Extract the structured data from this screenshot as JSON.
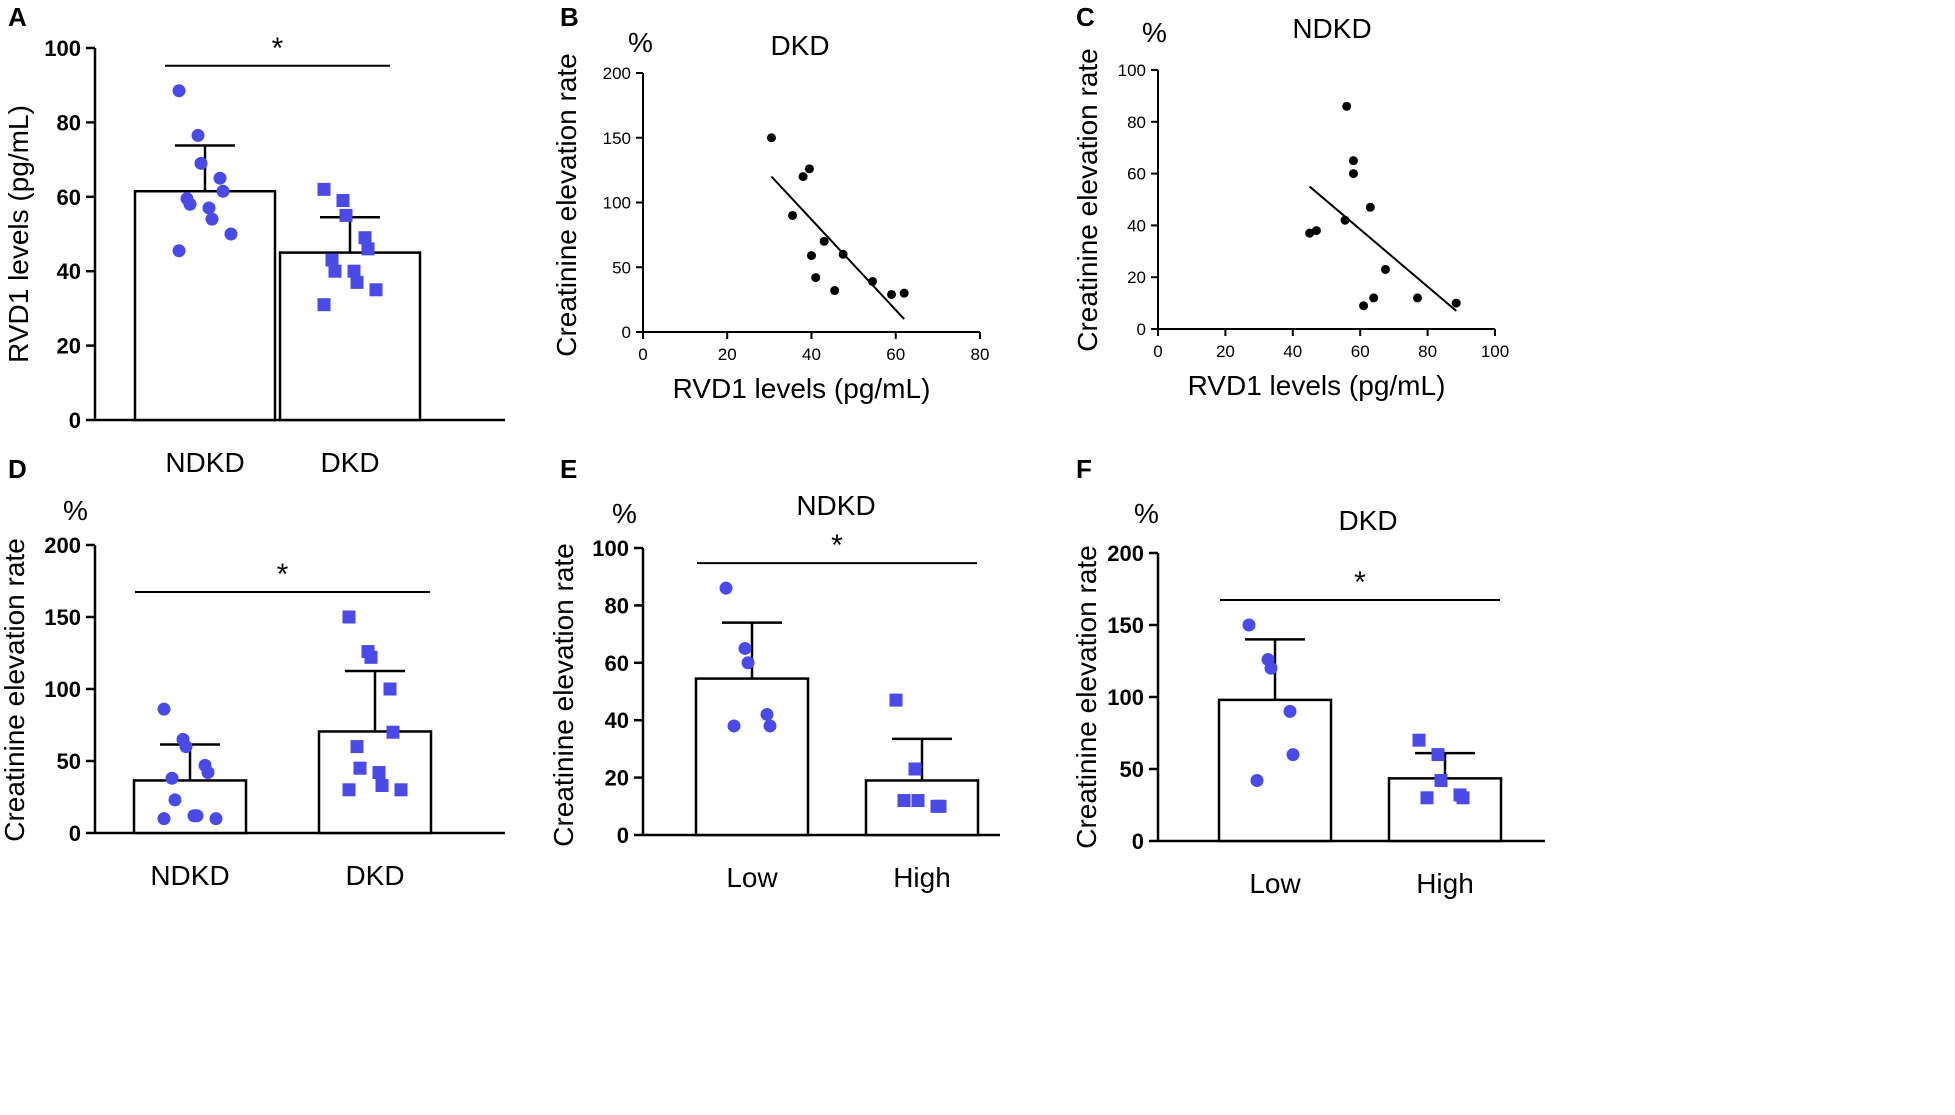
{
  "colors": {
    "marker": "#4a4ae6",
    "axis": "#000000",
    "bar_fill": "#ffffff"
  },
  "chart_data": [
    {
      "panel": "A",
      "type": "bar",
      "title": "",
      "ylabel": "RVD1 levels  (pg/mL)",
      "unit": "",
      "ylim": [
        0,
        100
      ],
      "yticks": [
        0,
        20,
        40,
        60,
        80,
        100
      ],
      "categories": [
        "NDKD",
        "DKD"
      ],
      "means": [
        61.5,
        45
      ],
      "sd": [
        12.3,
        9.5
      ],
      "points": [
        [
          88.5,
          76.5,
          69,
          65,
          61.5,
          59.5,
          58,
          57,
          54,
          50,
          45.5
        ],
        [
          62,
          59,
          55,
          49,
          46,
          43,
          40,
          40,
          37,
          35,
          31
        ]
      ],
      "markers": [
        "circle",
        "square"
      ],
      "significance": {
        "label": "*",
        "between": [
          0,
          1
        ]
      }
    },
    {
      "panel": "B",
      "type": "scatter",
      "title": "DKD",
      "unit": "%",
      "xlabel": "RVD1 levels  (pg/mL)",
      "ylabel": "Creatinine elevation rate",
      "xlim": [
        0,
        80
      ],
      "ylim": [
        0,
        200
      ],
      "xticks": [
        0,
        20,
        40,
        60,
        80
      ],
      "yticks": [
        0,
        50,
        100,
        150,
        200
      ],
      "x": [
        30.5,
        38,
        39.5,
        35.5,
        43,
        40,
        47.5,
        41,
        45.5,
        54.5,
        59,
        62
      ],
      "y": [
        150,
        120,
        126,
        90,
        70,
        59,
        60,
        42,
        32,
        39,
        29,
        30
      ],
      "fit": {
        "from": [
          30.5,
          120
        ],
        "to": [
          62,
          10
        ]
      }
    },
    {
      "panel": "C",
      "type": "scatter",
      "title": "NDKD",
      "unit": "%",
      "xlabel": "RVD1 levels  (pg/mL)",
      "ylabel": "Creatinine elevation rate",
      "xlim": [
        0,
        100
      ],
      "ylim": [
        0,
        100
      ],
      "xticks": [
        0,
        20,
        40,
        60,
        80,
        100
      ],
      "yticks": [
        0,
        20,
        40,
        60,
        80,
        100
      ],
      "x": [
        56,
        58,
        58,
        63,
        45,
        47,
        55.5,
        61,
        67.5,
        64,
        77,
        88.5
      ],
      "y": [
        86,
        65,
        60,
        47,
        37,
        38,
        42,
        9,
        23,
        12,
        12,
        10
      ],
      "fit": {
        "from": [
          45,
          55
        ],
        "to": [
          88.5,
          7
        ]
      }
    },
    {
      "panel": "D",
      "type": "bar",
      "title": "",
      "unit": "%",
      "ylabel": "Creatinine elevation rate",
      "ylim": [
        0,
        200
      ],
      "yticks": [
        0,
        50,
        100,
        150,
        200
      ],
      "categories": [
        "NDKD",
        "DKD"
      ],
      "means": [
        36.5,
        70.5
      ],
      "sd": [
        25,
        42
      ],
      "points": [
        [
          86,
          65,
          60,
          47,
          42,
          38,
          23,
          12,
          12,
          10,
          10
        ],
        [
          150,
          126,
          122,
          100,
          70,
          60,
          45,
          42,
          33,
          30,
          30
        ]
      ],
      "markers": [
        "circle",
        "square"
      ],
      "significance": {
        "label": "*",
        "between": [
          0,
          1
        ]
      }
    },
    {
      "panel": "E",
      "type": "bar",
      "title": "NDKD",
      "unit": "%",
      "ylabel": "Creatinine elevation rate",
      "ylim": [
        0,
        100
      ],
      "yticks": [
        0,
        20,
        40,
        60,
        80,
        100
      ],
      "categories": [
        "Low",
        "High"
      ],
      "means": [
        54.5,
        19
      ],
      "sd": [
        19.5,
        14.5
      ],
      "points": [
        [
          86,
          65,
          60,
          42,
          38,
          38
        ],
        [
          47,
          23,
          12,
          10,
          10,
          12
        ]
      ],
      "markers": [
        "circle",
        "square"
      ],
      "significance": {
        "label": "*",
        "between": [
          0,
          1
        ]
      }
    },
    {
      "panel": "F",
      "type": "bar",
      "title": "DKD",
      "unit": "%",
      "ylabel": "Creatinine elevation rate",
      "ylim": [
        0,
        200
      ],
      "yticks": [
        0,
        50,
        100,
        150,
        200
      ],
      "categories": [
        "Low",
        "High"
      ],
      "means": [
        98,
        43.5
      ],
      "sd": [
        42,
        17.5
      ],
      "points": [
        [
          150,
          126,
          120,
          90,
          60,
          42
        ],
        [
          70,
          60,
          42,
          32,
          30,
          30
        ]
      ],
      "markers": [
        "circle",
        "square"
      ],
      "significance": {
        "label": "*",
        "between": [
          0,
          1
        ]
      }
    }
  ]
}
